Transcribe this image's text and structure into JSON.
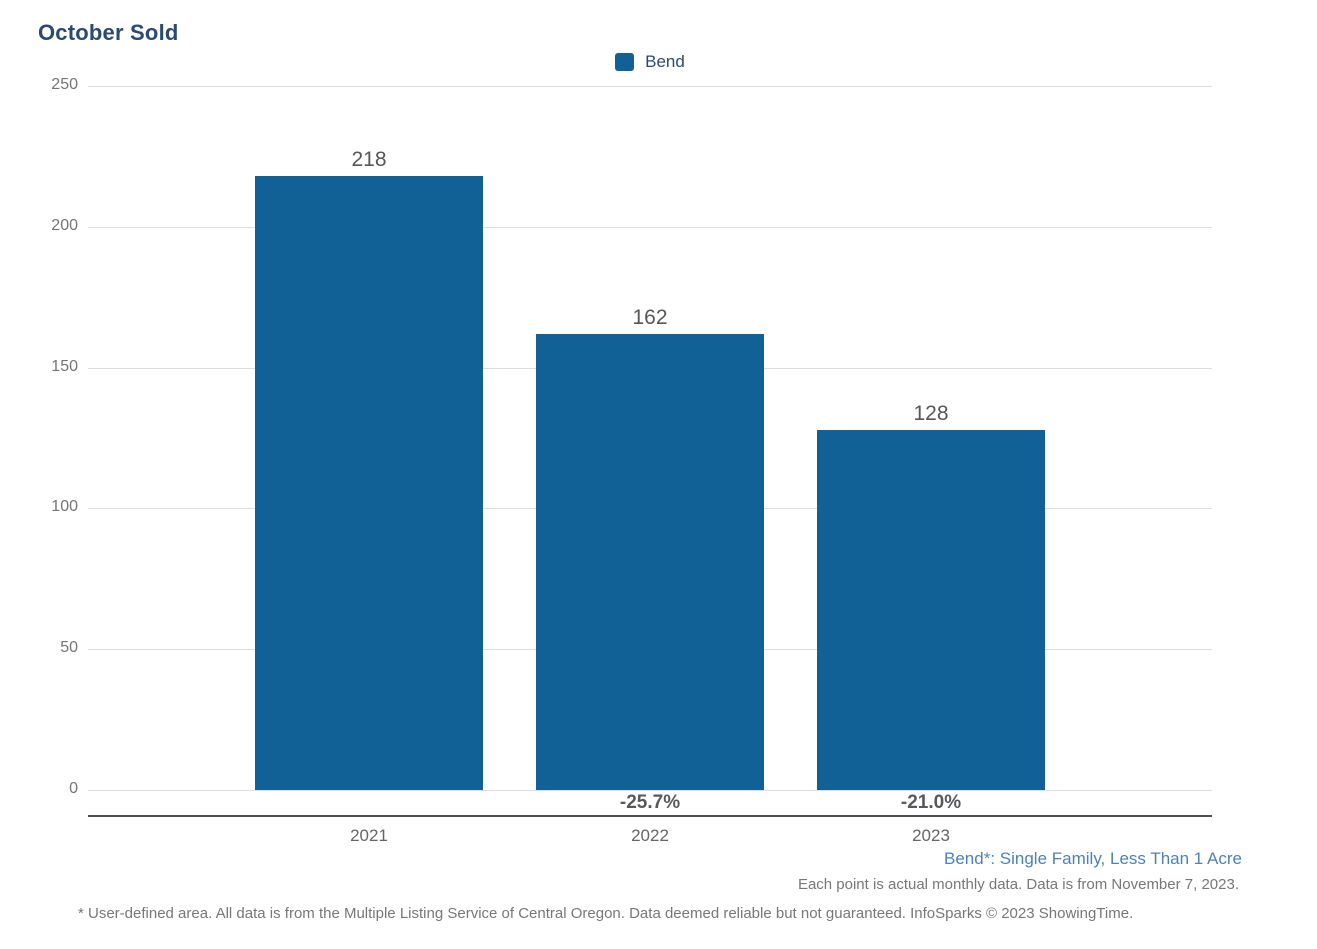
{
  "title": "October Sold",
  "legend": {
    "items": [
      {
        "label": "Bend",
        "color": "#116196"
      }
    ]
  },
  "chart_data": {
    "type": "bar",
    "title": "October Sold",
    "categories": [
      "2021",
      "2022",
      "2023"
    ],
    "series": [
      {
        "name": "Bend",
        "color": "#116196",
        "values": [
          218,
          162,
          128
        ]
      }
    ],
    "pct_change": [
      "",
      "-25.7%",
      "-21.0%"
    ],
    "xlabel": "",
    "ylabel": "",
    "ylim": [
      0,
      250
    ],
    "yticks": [
      0,
      50,
      100,
      150,
      200,
      250
    ],
    "grid": true,
    "legend_position": "top-center"
  },
  "footer": {
    "line1": "Bend*: Single Family, Less Than 1 Acre",
    "line2": "Each point is actual monthly data. Data is from November 7, 2023.",
    "line3": "* User-defined area. All data is from the Multiple Listing Service of Central Oregon. Data deemed reliable but not guaranteed. InfoSparks © 2023 ShowingTime."
  },
  "colors": {
    "title": "#2b4a72",
    "bar": "#116196",
    "gridline": "#dedede",
    "axis_line": "#4f4f4f",
    "y_tick_label": "#757575",
    "value_label": "#575757",
    "pct_label": "#58595b",
    "x_label": "#666666",
    "footer_blue": "#4d82b8",
    "footer_gray": "#777777"
  }
}
